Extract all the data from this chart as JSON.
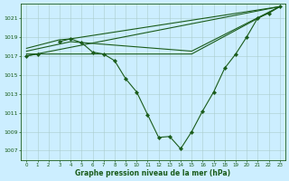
{
  "title": "Graphe pression niveau de la mer (hPa)",
  "bg": "#cceeff",
  "lc": "#1a5c1a",
  "ylim": [
    1006.0,
    1022.5
  ],
  "yticks": [
    1007,
    1009,
    1011,
    1013,
    1015,
    1017,
    1019,
    1021
  ],
  "xticks": [
    0,
    1,
    2,
    3,
    4,
    5,
    6,
    7,
    8,
    9,
    10,
    11,
    12,
    13,
    14,
    15,
    16,
    17,
    18,
    19,
    20,
    21,
    22,
    23
  ],
  "curve_x": [
    0,
    1,
    2,
    3,
    4,
    5,
    6,
    7,
    8,
    9,
    10,
    11,
    12,
    13,
    14,
    15,
    16,
    17,
    18,
    19,
    20,
    21,
    22,
    23
  ],
  "curve_y": [
    1017.0,
    1017.2,
    null,
    1018.5,
    1018.8,
    1018.4,
    1017.4,
    1017.2,
    1016.5,
    1014.6,
    1013.2,
    1010.8,
    1008.4,
    1008.5,
    1007.2,
    1009.0,
    1011.2,
    1013.2,
    1015.7,
    1017.2,
    1019.0,
    1021.0,
    1021.5,
    1022.2
  ],
  "line1_x": [
    0,
    23
  ],
  "line1_y": [
    1017.0,
    1022.2
  ],
  "line2_x": [
    0,
    3,
    4,
    23
  ],
  "line2_y": [
    1017.8,
    1018.7,
    1018.8,
    1022.2
  ],
  "line3_x": [
    0,
    4,
    15,
    23
  ],
  "line3_y": [
    1017.5,
    1018.5,
    1017.5,
    1022.2
  ],
  "line4_x": [
    0,
    15,
    23
  ],
  "line4_y": [
    1017.2,
    1017.2,
    1022.2
  ]
}
